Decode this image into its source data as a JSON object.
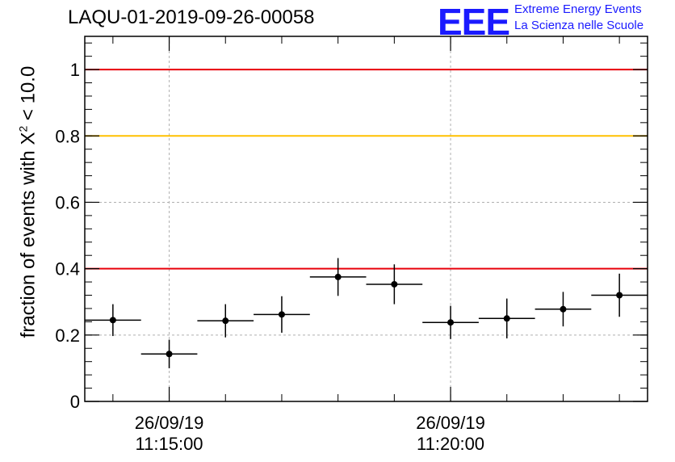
{
  "header": {
    "run_title": "LAQU-01-2019-09-26-00058",
    "logo": "EEE",
    "logo_line1": "Extreme Energy Events",
    "logo_line2": "La Scienza nelle Scuole"
  },
  "chart_data": {
    "type": "scatter",
    "title": "LAQU-01-2019-09-26-00058",
    "ylabel_pre": "fraction of events with Χ",
    "ylabel_sup": "2",
    "ylabel_post": " < 10.0",
    "xlim": [
      "2019-09-26 11:13:30",
      "2019-09-26 11:23:30"
    ],
    "ylim": [
      0,
      1.1
    ],
    "yticks": [
      {
        "value": 0,
        "label": "0"
      },
      {
        "value": 0.2,
        "label": "0.2"
      },
      {
        "value": 0.4,
        "label": "0.4"
      },
      {
        "value": 0.6,
        "label": "0.6"
      },
      {
        "value": 0.8,
        "label": "0.8"
      },
      {
        "value": 1,
        "label": "1"
      }
    ],
    "xticks": [
      {
        "time": "2019-09-26 11:15:00",
        "date": "26/09/19",
        "clock": "11:15:00"
      },
      {
        "time": "2019-09-26 11:20:00",
        "date": "26/09/19",
        "clock": "11:20:00"
      }
    ],
    "grid": true,
    "reference_lines": [
      {
        "y": 1.0,
        "color": "#e8000b"
      },
      {
        "y": 0.8,
        "color": "#ffc000"
      },
      {
        "y": 0.4,
        "color": "#e8000b"
      }
    ],
    "points": [
      {
        "x_start": "2019-09-26 11:13:30",
        "x_end": "2019-09-26 11:14:30",
        "y": 0.245,
        "err": 0.048
      },
      {
        "x_start": "2019-09-26 11:14:30",
        "x_end": "2019-09-26 11:15:30",
        "y": 0.143,
        "err": 0.043
      },
      {
        "x_start": "2019-09-26 11:15:30",
        "x_end": "2019-09-26 11:16:30",
        "y": 0.243,
        "err": 0.05
      },
      {
        "x_start": "2019-09-26 11:16:30",
        "x_end": "2019-09-26 11:17:30",
        "y": 0.262,
        "err": 0.055
      },
      {
        "x_start": "2019-09-26 11:17:30",
        "x_end": "2019-09-26 11:18:30",
        "y": 0.375,
        "err": 0.057
      },
      {
        "x_start": "2019-09-26 11:18:30",
        "x_end": "2019-09-26 11:19:30",
        "y": 0.353,
        "err": 0.06
      },
      {
        "x_start": "2019-09-26 11:19:30",
        "x_end": "2019-09-26 11:20:30",
        "y": 0.238,
        "err": 0.05
      },
      {
        "x_start": "2019-09-26 11:20:30",
        "x_end": "2019-09-26 11:21:30",
        "y": 0.25,
        "err": 0.06
      },
      {
        "x_start": "2019-09-26 11:21:30",
        "x_end": "2019-09-26 11:22:30",
        "y": 0.278,
        "err": 0.052
      },
      {
        "x_start": "2019-09-26 11:22:30",
        "x_end": "2019-09-26 11:23:30",
        "y": 0.32,
        "err": 0.065
      }
    ],
    "colors": {
      "points": "#000000",
      "grid": "#b0b0b0",
      "frame": "#000000"
    }
  }
}
